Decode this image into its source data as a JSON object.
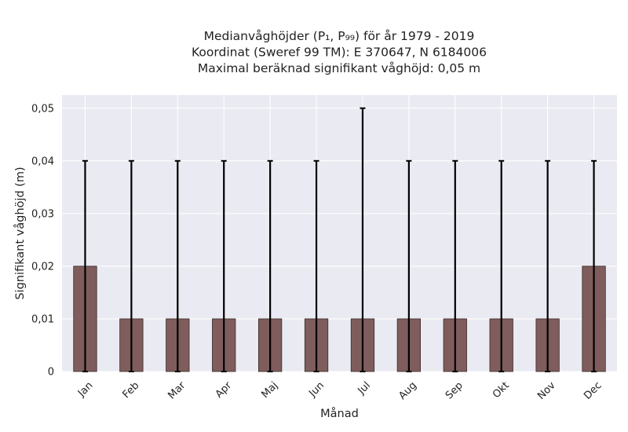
{
  "chart_data": {
    "type": "bar",
    "title_lines": [
      "Medianvåghöjder (P₁, P₉₉) för år 1979 - 2019",
      "Koordinat (Sweref 99 TM): E 370647, N 6184006",
      "Maximal beräknad signifikant våghöjd: 0,05 m"
    ],
    "xlabel": "Månad",
    "ylabel": "Signifikant våghöjd (m)",
    "categories": [
      "Jan",
      "Feb",
      "Mar",
      "Apr",
      "Maj",
      "Jun",
      "Jul",
      "Aug",
      "Sep",
      "Okt",
      "Nov",
      "Dec"
    ],
    "values": [
      0.02,
      0.01,
      0.01,
      0.01,
      0.01,
      0.01,
      0.01,
      0.01,
      0.01,
      0.01,
      0.01,
      0.02
    ],
    "error_low": [
      0,
      0,
      0,
      0,
      0,
      0,
      0,
      0,
      0,
      0,
      0,
      0
    ],
    "error_high": [
      0.04,
      0.04,
      0.04,
      0.04,
      0.04,
      0.04,
      0.05,
      0.04,
      0.04,
      0.04,
      0.04,
      0.04
    ],
    "ylim": [
      0,
      0.0525
    ],
    "yticks": [
      0,
      0.01,
      0.02,
      0.03,
      0.04,
      0.05
    ],
    "ytick_labels": [
      "0",
      "0,01",
      "0,02",
      "0,03",
      "0,04",
      "0,05"
    ],
    "grid": true,
    "colors": {
      "bar": "#7f5d5d",
      "bar_edge": "#3a2a2a",
      "error": "#000000",
      "plot_bg": "#eaeaf2",
      "grid": "#ffffff"
    }
  }
}
